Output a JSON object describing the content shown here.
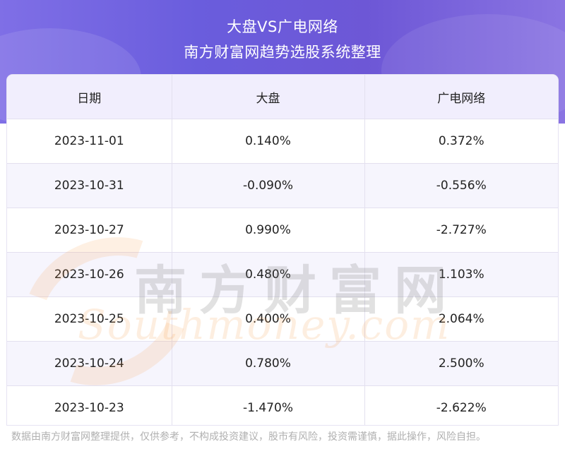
{
  "header": {
    "title": "大盘VS广电网络",
    "subtitle": "南方财富网趋势选股系统整理"
  },
  "table": {
    "columns": [
      "日期",
      "大盘",
      "广电网络"
    ],
    "rows": [
      [
        "2023-11-01",
        "0.140%",
        "0.372%"
      ],
      [
        "2023-10-31",
        "-0.090%",
        "-0.556%"
      ],
      [
        "2023-10-27",
        "0.990%",
        "-2.727%"
      ],
      [
        "2023-10-26",
        "0.480%",
        "1.103%"
      ],
      [
        "2023-10-25",
        "0.400%",
        "2.064%"
      ],
      [
        "2023-10-24",
        "0.780%",
        "2.500%"
      ],
      [
        "2023-10-23",
        "-1.470%",
        "-2.622%"
      ]
    ]
  },
  "watermark": {
    "cn": "南方财富网",
    "en": "Southmoney.com"
  },
  "footer": {
    "disclaimer": "数据由南方财富网整理提供，仅供参考，不构成投资建议，股市有风险，投资需谨慎，据此操作，风险自担。"
  },
  "colors": {
    "header_gradient": "#6a5ddd",
    "table_header_bg": "#f1eefd",
    "row_alt_bg": "#f6f5fd"
  }
}
